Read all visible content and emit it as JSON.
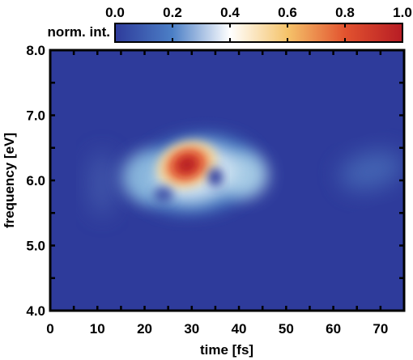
{
  "chart_data": {
    "type": "heatmap",
    "xlabel": "time [fs]",
    "ylabel": "frequency [eV]",
    "xlim": [
      0,
      75
    ],
    "ylim": [
      4.0,
      8.0
    ],
    "x_ticks": [
      "0",
      "10",
      "20",
      "30",
      "40",
      "50",
      "60",
      "70"
    ],
    "x_tick_values": [
      0,
      10,
      20,
      30,
      40,
      50,
      60,
      70
    ],
    "y_ticks": [
      "4.0",
      "5.0",
      "6.0",
      "7.0",
      "8.0"
    ],
    "y_tick_values": [
      4.0,
      5.0,
      6.0,
      7.0,
      8.0
    ],
    "colorbar": {
      "label": "norm. int.",
      "range": [
        0.0,
        1.0
      ],
      "ticks": [
        "0.0",
        "0.2",
        "0.4",
        "0.6",
        "0.8",
        "1.0"
      ],
      "tick_values": [
        0.0,
        0.2,
        0.4,
        0.6,
        0.8,
        1.0
      ],
      "colormap": [
        "#2e3b9b",
        "#4c7fc6",
        "#ffffff",
        "#f5c36a",
        "#e2532f",
        "#b71c24"
      ]
    },
    "background_color": "#2e3b9b",
    "features": [
      {
        "name": "main-peak",
        "time_fs": 29.0,
        "freq_eV": 6.24,
        "intensity": 1.0
      },
      {
        "name": "ring",
        "time_fs": 31.0,
        "freq_eV": 6.1,
        "intensity": 0.35
      },
      {
        "name": "dip",
        "time_fs": 35.0,
        "freq_eV": 6.05,
        "intensity": 0.0
      },
      {
        "name": "left-lobe",
        "time_fs": 21.0,
        "freq_eV": 6.05,
        "intensity": 0.22
      },
      {
        "name": "right-lobe",
        "time_fs": 41.0,
        "freq_eV": 6.08,
        "intensity": 0.25
      },
      {
        "name": "faint-left",
        "time_fs": 11.0,
        "freq_eV": 5.95,
        "intensity": 0.08
      },
      {
        "name": "faint-right",
        "time_fs": 68.0,
        "freq_eV": 6.15,
        "intensity": 0.08
      }
    ]
  }
}
